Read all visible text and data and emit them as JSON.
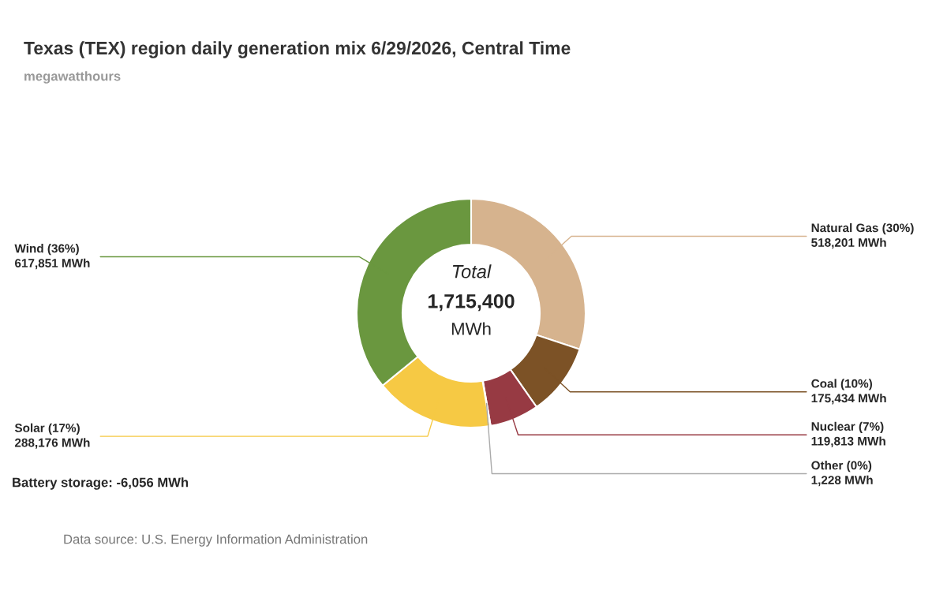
{
  "chart_data": {
    "type": "donut",
    "title": "Texas (TEX) region daily generation mix 6/29/2026, Central Time",
    "subtitle": "megawatthours",
    "categories": [
      "Natural Gas (30%)",
      "Coal (10%)",
      "Nuclear (7%)",
      "Other (0%)",
      "Solar (17%)",
      "Wind (36%)"
    ],
    "values": [
      518201,
      175434,
      119813,
      1228,
      288176,
      617851
    ],
    "value_labels": [
      "518,201 MWh",
      "175,434 MWh",
      "119,813 MWh",
      "1,228 MWh",
      "288,176 MWh",
      "617,851 MWh"
    ],
    "colors": [
      "#d6b38e",
      "#7c5226",
      "#973a43",
      "#aaaaaa",
      "#f6c944",
      "#6a973f"
    ],
    "annotations": [
      "Total",
      "1,715,400",
      "MWh",
      "Battery storage: -6,056 MWh",
      "Data source: U.S. Energy Information Administration"
    ],
    "legend": false
  }
}
